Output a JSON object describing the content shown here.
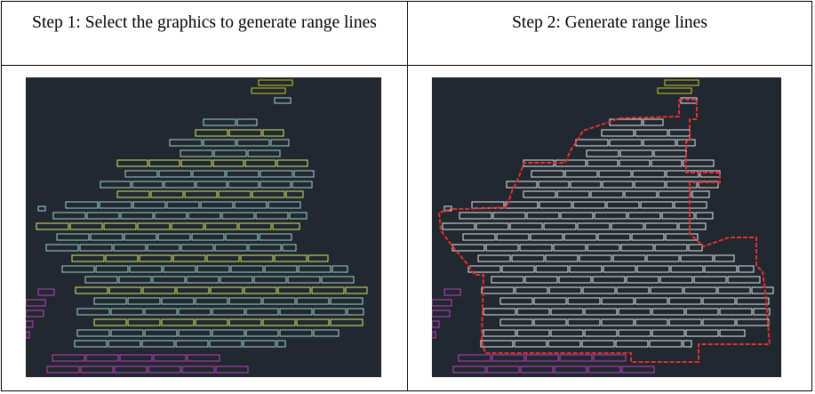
{
  "table": {
    "step1_header": "Step 1: Select the graphics to generate range lines",
    "step2_header": "Step 2: Generate range lines"
  },
  "colors": {
    "canvas_background": "#212830",
    "selected_block_stroke": "#9fd3c7",
    "selected_block_fill_edge": "#d6e86a",
    "plain_block_stroke": "#e6e6e6",
    "yellow_block_stroke": "#c8c820",
    "magenta_block_stroke": "#c040c0",
    "range_line": "#e03030"
  },
  "figures": [
    {
      "label_key": "step1",
      "mode": "selected"
    },
    {
      "label_key": "step2",
      "mode": "range"
    }
  ]
}
